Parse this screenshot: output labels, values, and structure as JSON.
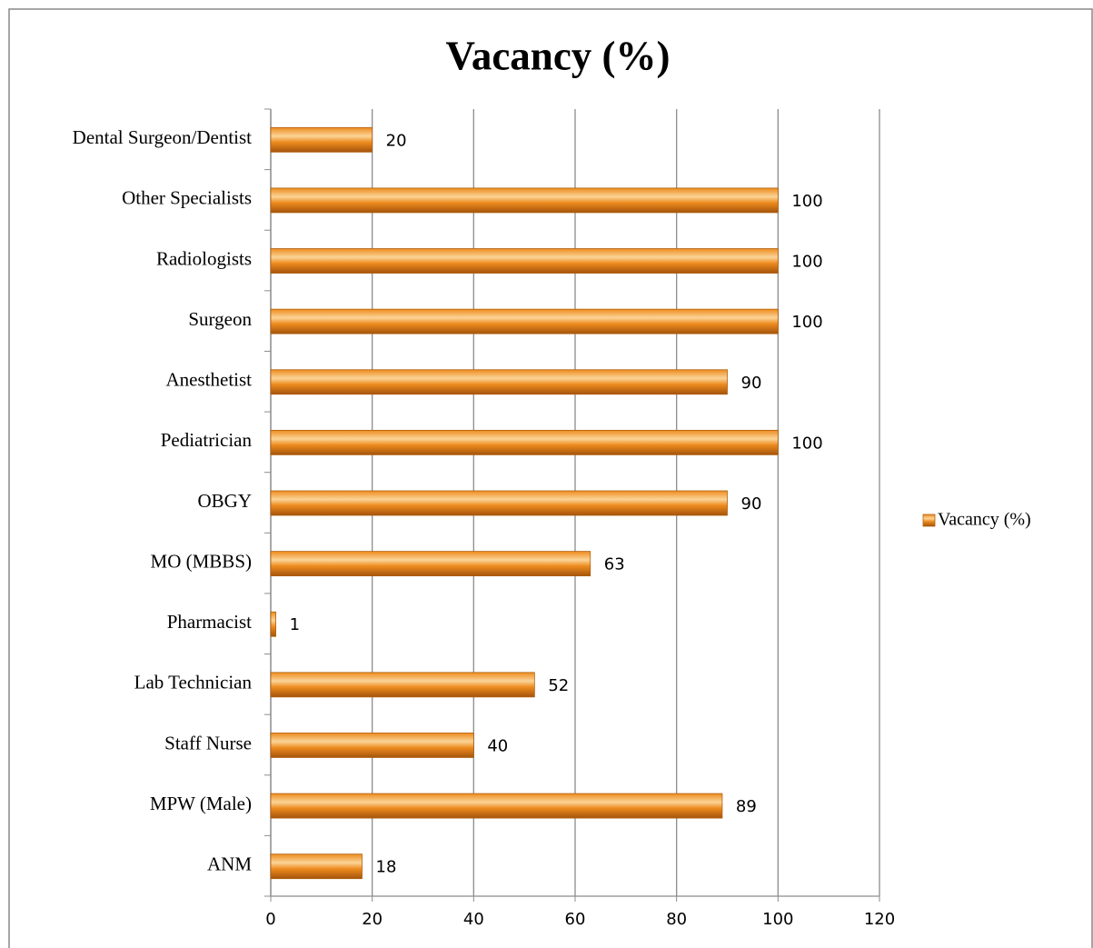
{
  "chart_data": {
    "type": "bar",
    "orientation": "horizontal",
    "title": "Vacancy (%)",
    "categories": [
      "ANM",
      "MPW (Male)",
      "Staff Nurse",
      "Lab Technician",
      "Pharmacist",
      "MO (MBBS)",
      "OBGY",
      "Pediatrician",
      "Anesthetist",
      "Surgeon",
      "Radiologists",
      "Other Specialists",
      "Dental Surgeon/Dentist"
    ],
    "series": [
      {
        "name": "Vacancy (%)",
        "color": "#ed8b1e",
        "values": [
          18,
          89,
          40,
          52,
          1,
          63,
          90,
          100,
          90,
          100,
          100,
          100,
          20
        ]
      }
    ],
    "xlim": [
      0,
      120
    ],
    "xticks": [
      0,
      20,
      40,
      60,
      80,
      100,
      120
    ],
    "grid": true,
    "legend": "right",
    "data_labels": true
  }
}
